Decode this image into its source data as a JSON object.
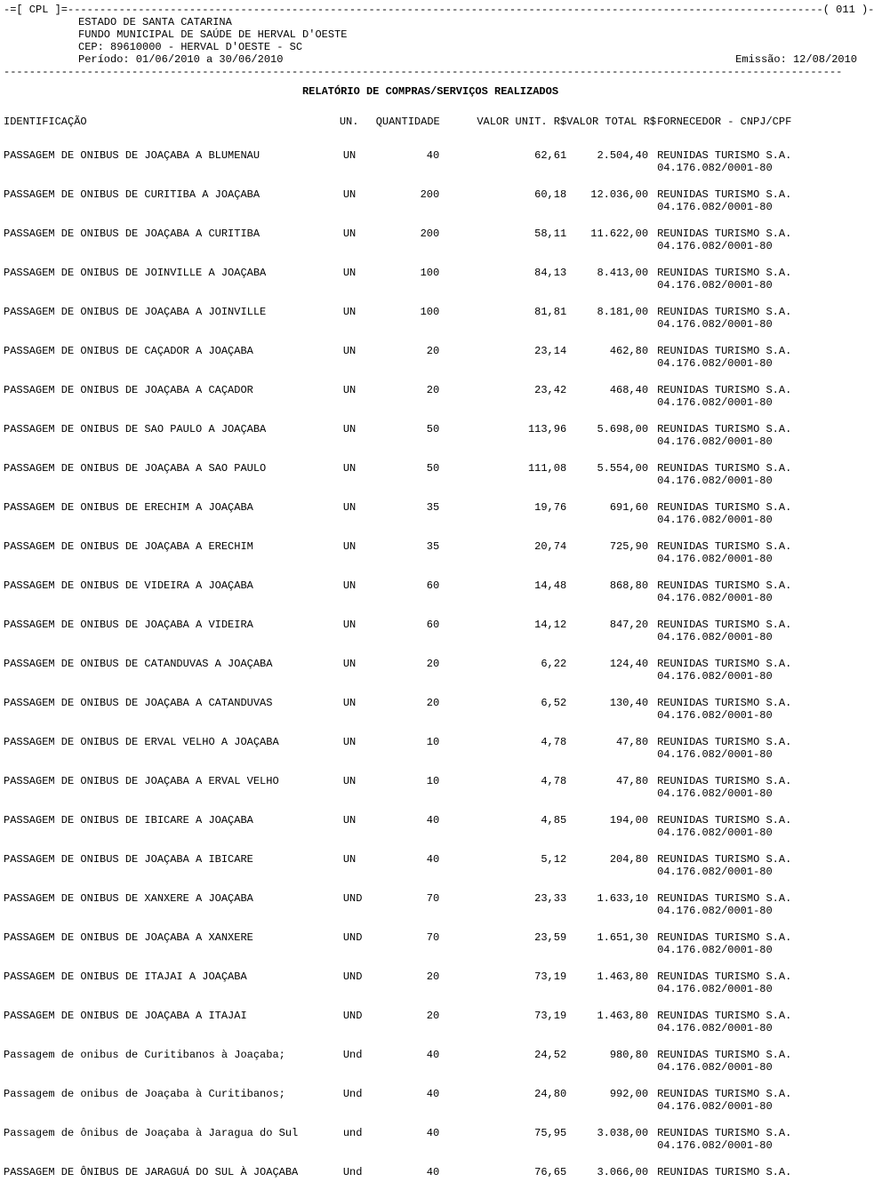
{
  "page_marker": {
    "left": "-=[ CPL ]=",
    "right": "( 011 )-"
  },
  "header": {
    "estado": "ESTADO DE SANTA CATARINA",
    "fundo": "FUNDO MUNICIPAL DE SAÚDE DE HERVAL D'OESTE",
    "cep": "CEP: 89610000 - HERVAL D'OESTE - SC",
    "periodo": "Período: 01/06/2010 a 30/06/2010",
    "emissao": "Emissão: 12/08/2010"
  },
  "title": "RELATÓRIO DE COMPRAS/SERVIÇOS REALIZADOS",
  "columns": {
    "id": "IDENTIFICAÇÃO",
    "un": "UN.",
    "qtd": "QUANTIDADE",
    "vu": "VALOR UNIT. R$",
    "vt": "VALOR TOTAL R$",
    "forn": "FORNECEDOR - CNPJ/CPF"
  },
  "fornecedor": {
    "nome": "REUNIDAS TURISMO S.A.",
    "cnpj": "04.176.082/0001-80"
  },
  "rows": [
    {
      "id": "PASSAGEM DE ONIBUS DE JOAÇABA A BLUMENAU",
      "un": "UN",
      "qtd": "40",
      "vu": "62,61",
      "vt": "2.504,40"
    },
    {
      "id": "PASSAGEM DE ONIBUS DE CURITIBA A JOAÇABA",
      "un": "UN",
      "qtd": "200",
      "vu": "60,18",
      "vt": "12.036,00"
    },
    {
      "id": "PASSAGEM DE ONIBUS DE JOAÇABA A CURITIBA",
      "un": "UN",
      "qtd": "200",
      "vu": "58,11",
      "vt": "11.622,00"
    },
    {
      "id": "PASSAGEM DE ONIBUS DE JOINVILLE A JOAÇABA",
      "un": "UN",
      "qtd": "100",
      "vu": "84,13",
      "vt": "8.413,00"
    },
    {
      "id": "PASSAGEM DE ONIBUS DE JOAÇABA A JOINVILLE",
      "un": "UN",
      "qtd": "100",
      "vu": "81,81",
      "vt": "8.181,00"
    },
    {
      "id": "PASSAGEM DE ONIBUS DE CAÇADOR A JOAÇABA",
      "un": "UN",
      "qtd": "20",
      "vu": "23,14",
      "vt": "462,80"
    },
    {
      "id": "PASSAGEM DE ONIBUS DE JOAÇABA A CAÇADOR",
      "un": "UN",
      "qtd": "20",
      "vu": "23,42",
      "vt": "468,40"
    },
    {
      "id": "PASSAGEM DE ONIBUS DE SAO PAULO A JOAÇABA",
      "un": "UN",
      "qtd": "50",
      "vu": "113,96",
      "vt": "5.698,00"
    },
    {
      "id": "PASSAGEM DE ONIBUS DE JOAÇABA A SAO PAULO",
      "un": "UN",
      "qtd": "50",
      "vu": "111,08",
      "vt": "5.554,00"
    },
    {
      "id": "PASSAGEM DE ONIBUS DE ERECHIM A JOAÇABA",
      "un": "UN",
      "qtd": "35",
      "vu": "19,76",
      "vt": "691,60"
    },
    {
      "id": "PASSAGEM DE ONIBUS DE JOAÇABA A ERECHIM",
      "un": "UN",
      "qtd": "35",
      "vu": "20,74",
      "vt": "725,90"
    },
    {
      "id": "PASSAGEM DE ONIBUS DE VIDEIRA A JOAÇABA",
      "un": "UN",
      "qtd": "60",
      "vu": "14,48",
      "vt": "868,80"
    },
    {
      "id": "PASSAGEM DE ONIBUS DE JOAÇABA A VIDEIRA",
      "un": "UN",
      "qtd": "60",
      "vu": "14,12",
      "vt": "847,20"
    },
    {
      "id": "PASSAGEM DE ONIBUS DE CATANDUVAS A JOAÇABA",
      "un": "UN",
      "qtd": "20",
      "vu": "6,22",
      "vt": "124,40"
    },
    {
      "id": "PASSAGEM DE ONIBUS DE JOAÇABA A CATANDUVAS",
      "un": "UN",
      "qtd": "20",
      "vu": "6,52",
      "vt": "130,40"
    },
    {
      "id": "PASSAGEM DE ONIBUS DE ERVAL VELHO A JOAÇABA",
      "un": "UN",
      "qtd": "10",
      "vu": "4,78",
      "vt": "47,80"
    },
    {
      "id": "PASSAGEM DE ONIBUS DE JOAÇABA A ERVAL VELHO",
      "un": "UN",
      "qtd": "10",
      "vu": "4,78",
      "vt": "47,80"
    },
    {
      "id": "PASSAGEM DE ONIBUS DE IBICARE A JOAÇABA",
      "un": "UN",
      "qtd": "40",
      "vu": "4,85",
      "vt": "194,00"
    },
    {
      "id": "PASSAGEM DE ONIBUS DE JOAÇABA A IBICARE",
      "un": "UN",
      "qtd": "40",
      "vu": "5,12",
      "vt": "204,80"
    },
    {
      "id": "PASSAGEM DE ONIBUS DE XANXERE A JOAÇABA",
      "un": "UND",
      "qtd": "70",
      "vu": "23,33",
      "vt": "1.633,10"
    },
    {
      "id": "PASSAGEM DE ONIBUS DE JOAÇABA A XANXERE",
      "un": "UND",
      "qtd": "70",
      "vu": "23,59",
      "vt": "1.651,30"
    },
    {
      "id": "PASSAGEM DE ONIBUS DE ITAJAI A JOAÇABA",
      "un": "UND",
      "qtd": "20",
      "vu": "73,19",
      "vt": "1.463,80"
    },
    {
      "id": "PASSAGEM DE ONIBUS DE JOAÇABA A ITAJAI",
      "un": "UND",
      "qtd": "20",
      "vu": "73,19",
      "vt": "1.463,80"
    },
    {
      "id": "Passagem de onibus de Curitibanos à Joaçaba;",
      "un": "Und",
      "qtd": "40",
      "vu": "24,52",
      "vt": "980,80"
    },
    {
      "id": "Passagem de onibus de Joaçaba à Curitibanos;",
      "un": "Und",
      "qtd": "40",
      "vu": "24,80",
      "vt": "992,00"
    },
    {
      "id": "Passagem de ônibus de Joaçaba à Jaragua do Sul",
      "un": "und",
      "qtd": "40",
      "vu": "75,95",
      "vt": "3.038,00"
    },
    {
      "id": "PASSAGEM DE ÔNIBUS DE JARAGUÁ DO SUL À JOAÇABA",
      "un": "Und",
      "qtd": "40",
      "vu": "76,65",
      "vt": "3.066,00",
      "last": true
    }
  ]
}
